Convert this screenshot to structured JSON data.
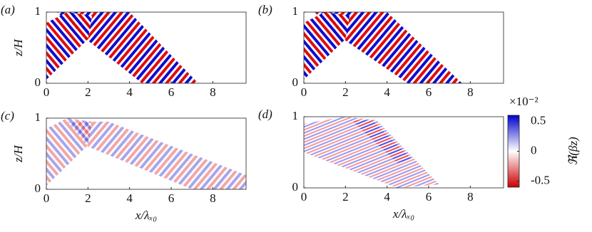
{
  "chart_data": [
    {
      "type": "heatmap",
      "panel_label": "(a)",
      "xlim": [
        0,
        9.6
      ],
      "xticks": [
        0,
        2,
        4,
        6,
        8
      ],
      "ylim": [
        0,
        1
      ],
      "yticks": [
        0,
        1
      ],
      "ylabel": "z/H"
    },
    {
      "type": "heatmap",
      "panel_label": "(b)",
      "xlim": [
        0,
        9.6
      ],
      "xticks": [
        0,
        2,
        4,
        6,
        8
      ],
      "ylim": [
        0,
        1
      ],
      "yticks": [
        0,
        1
      ]
    },
    {
      "type": "heatmap",
      "panel_label": "(c)",
      "xlim": [
        0,
        9.6
      ],
      "xticks": [
        0,
        2,
        4,
        6,
        8
      ],
      "ylim": [
        0,
        1
      ],
      "yticks": [
        0,
        1
      ],
      "ylabel": "z/H",
      "xlabel": "x/λₓ₀"
    },
    {
      "type": "heatmap",
      "panel_label": "(d)",
      "xlim": [
        0,
        9.6
      ],
      "xticks": [
        0,
        2,
        4,
        6,
        8
      ],
      "ylim": [
        0,
        1
      ],
      "yticks": [
        0,
        1
      ],
      "xlabel": "x/λₓ₀",
      "colorbar": {
        "clim": [
          -0.6,
          0.6
        ],
        "ticks": [
          0.5,
          0,
          -0.5
        ],
        "label": "ℜ(βz)",
        "scale_label": "×10⁻²",
        "colors": [
          "#cc0000",
          "#ffffff",
          "#0000cc"
        ]
      }
    }
  ]
}
